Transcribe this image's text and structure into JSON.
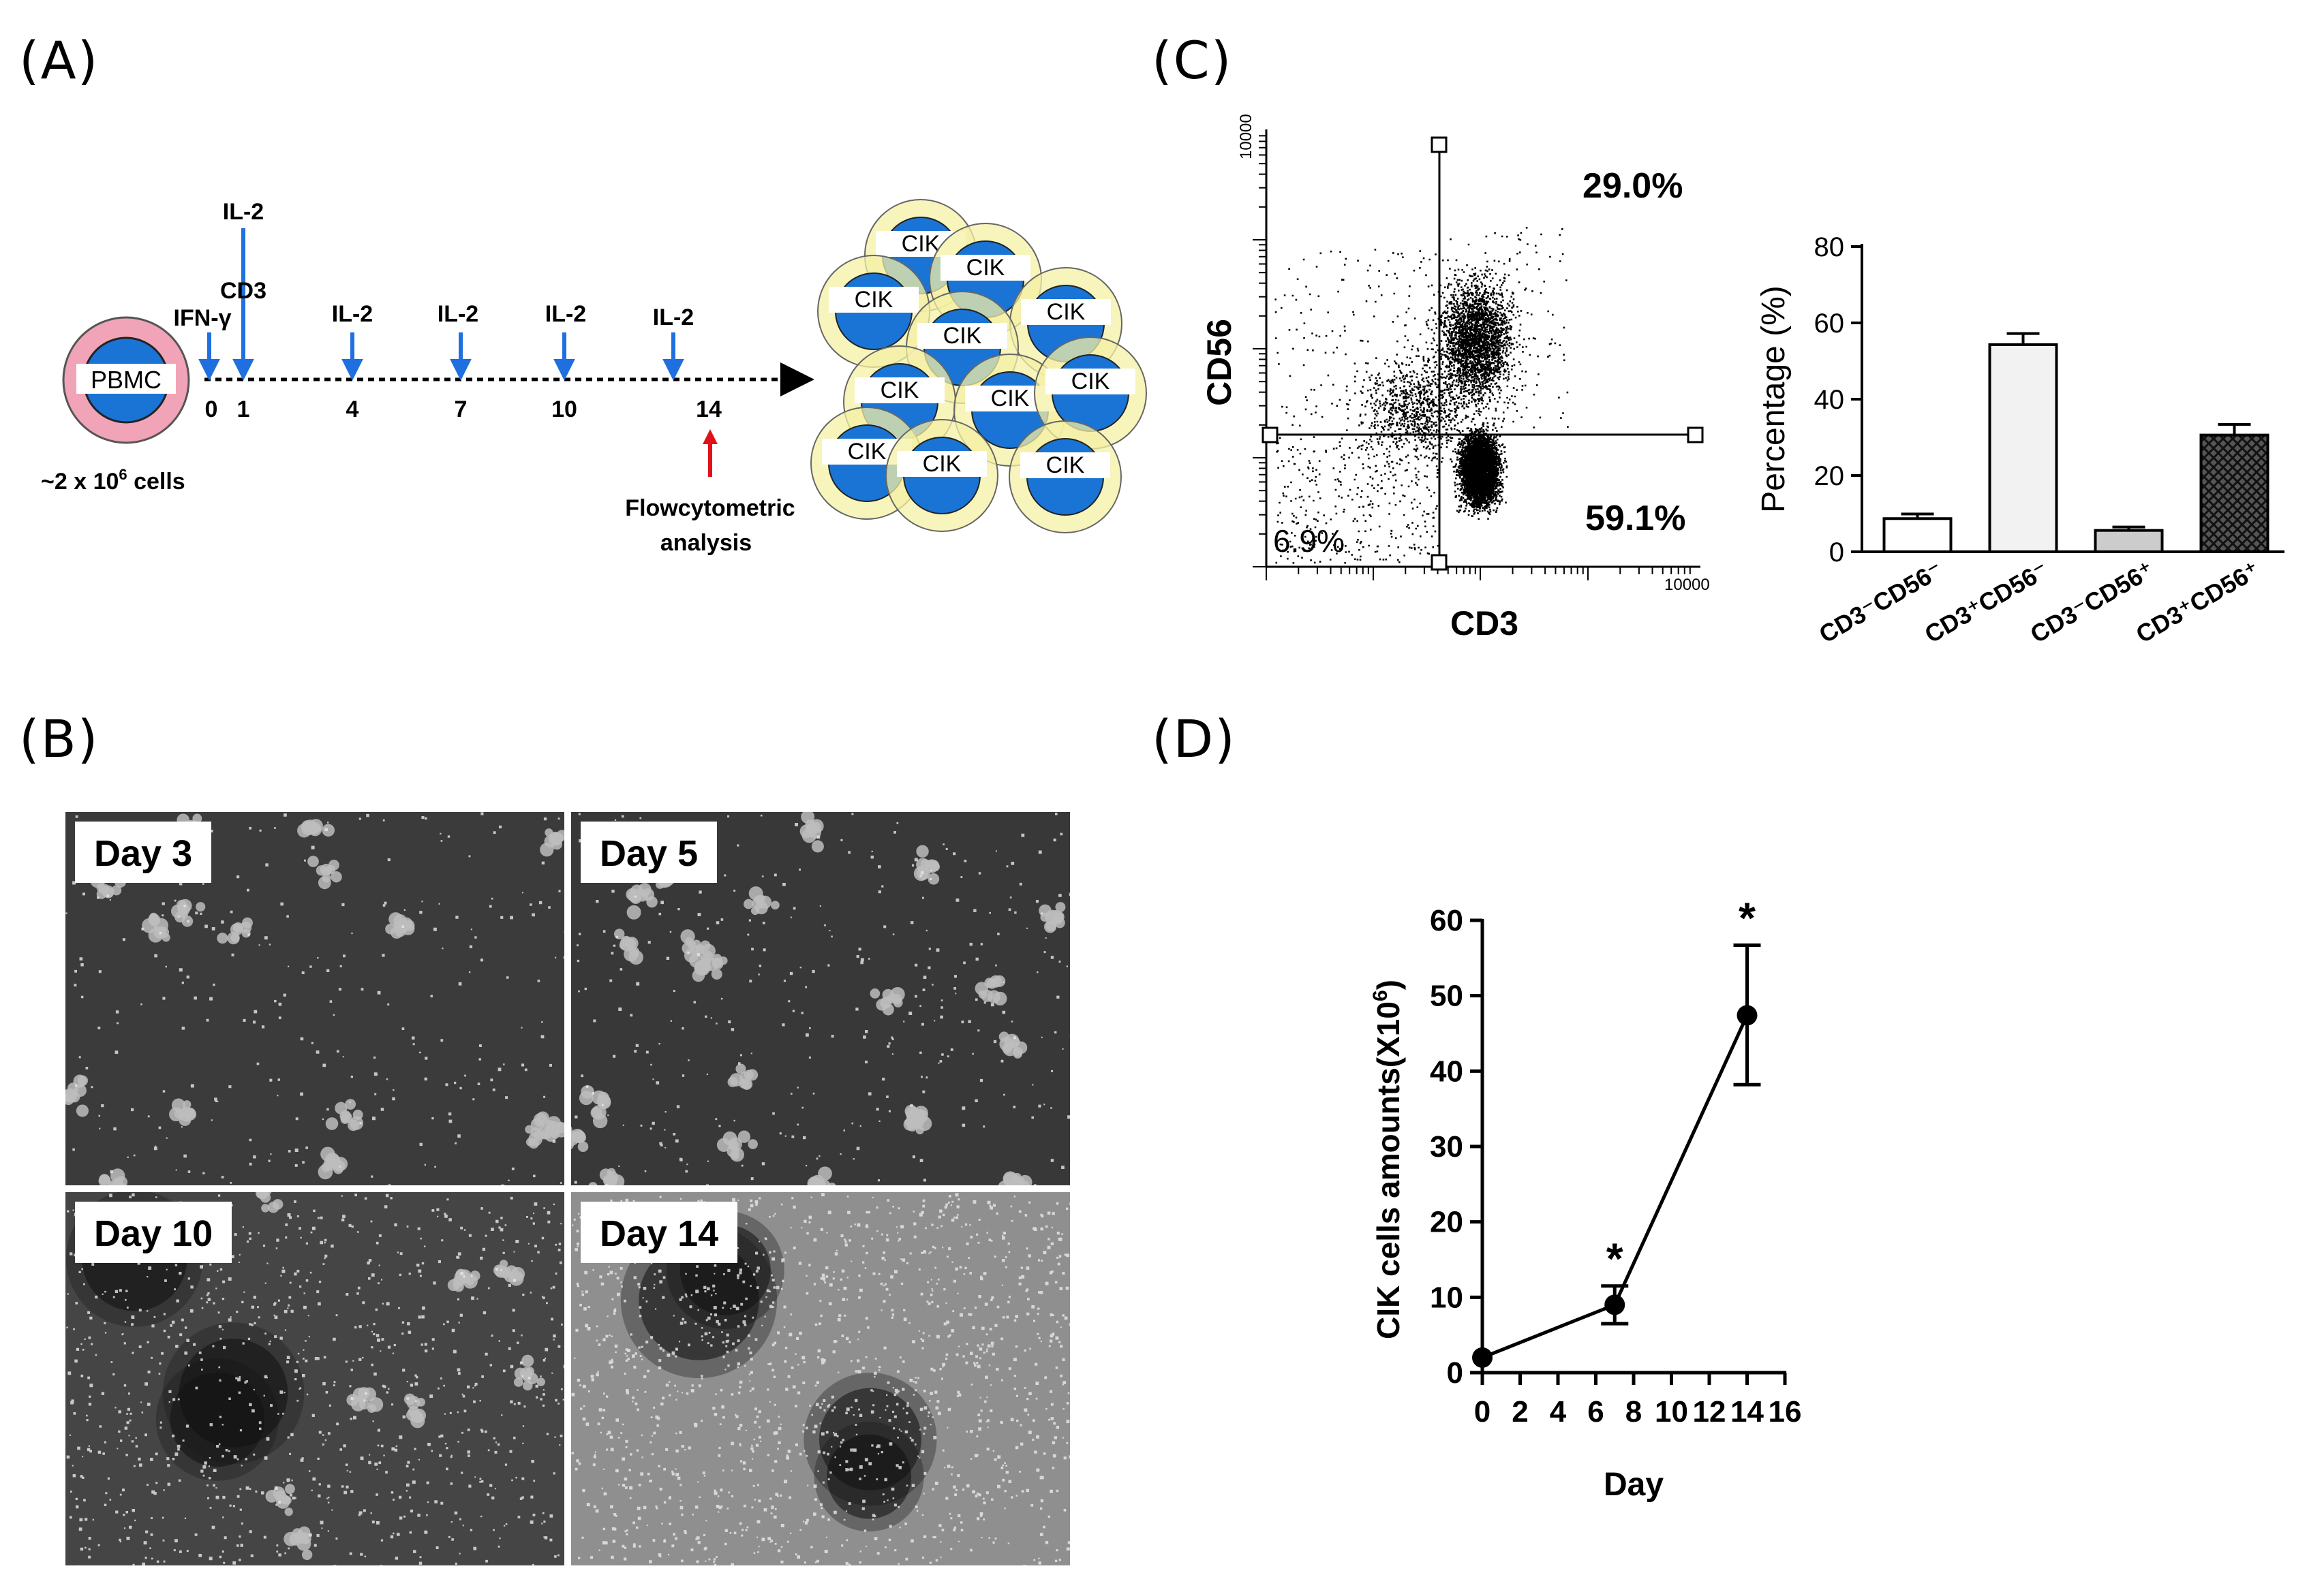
{
  "panels": {
    "a": {
      "label": "(A)",
      "pbmc": "PBMC",
      "cells_prefix": "~2 x 10",
      "cells_sup": "6",
      "cells_suffix": " cells",
      "il2_top": "IL-2",
      "cd3": "CD3",
      "ifn": "IFN-γ",
      "timeline_labels": [
        "IL-2",
        "IL-2",
        "IL-2",
        "IL-2"
      ],
      "days": [
        "0",
        "1",
        "4",
        "7",
        "10",
        "14"
      ],
      "flow_line1": "Flowcytometric",
      "flow_line2": "analysis",
      "cik": "CIK",
      "colors": {
        "pink": "#f1a3b7",
        "blue": "#1a74d6",
        "yellow": "#f4f0a6",
        "arrow_blue": "#1f6fe0",
        "arrow_red": "#e0111a"
      }
    },
    "b": {
      "label": "(B)",
      "days": [
        "Day 3",
        "Day 5",
        "Day 10",
        "Day 14"
      ]
    },
    "c": {
      "label": "(C)",
      "scatter": {
        "ylabel": "CD56",
        "xlabel": "CD3",
        "ymax_tick": "10000",
        "xmax_tick": "10000",
        "q_upper_right": "29.0%",
        "q_lower_right": "59.1%",
        "q_lower_left": "6.9%"
      }
    },
    "d": {
      "label": "(D)"
    }
  },
  "chart_data": [
    {
      "type": "bar",
      "ylabel": "Percentage (%)",
      "categories": [
        "CD3⁻CD56⁻",
        "CD3⁺CD56⁻",
        "CD3⁻CD56⁺",
        "CD3⁺CD56⁺"
      ],
      "values": [
        8.7,
        54.3,
        5.6,
        30.6
      ],
      "errors": [
        1.2,
        2.9,
        0.9,
        2.8
      ],
      "fills": [
        "#ffffff",
        "#f2f2f2",
        "#cccccc",
        "crosshatch"
      ],
      "ylim": [
        0,
        80
      ],
      "yticks": [
        "0",
        "20",
        "40",
        "60",
        "80"
      ]
    },
    {
      "type": "line",
      "xlabel": "Day",
      "ylabel": "CIK cells amounts(X10^6)",
      "x": [
        0,
        7,
        14
      ],
      "values": [
        2.0,
        9.0,
        47.4
      ],
      "err_upper": [
        2.0,
        11.5,
        56.7
      ],
      "err_lower": [
        2.0,
        6.5,
        38.2
      ],
      "significance": [
        "",
        "*",
        "*"
      ],
      "xlim": [
        0,
        16
      ],
      "ylim": [
        0,
        60
      ],
      "xticks": [
        "0",
        "2",
        "4",
        "6",
        "8",
        "10",
        "12",
        "14",
        "16"
      ],
      "yticks": [
        "0",
        "10",
        "20",
        "30",
        "40",
        "50",
        "60"
      ]
    }
  ]
}
